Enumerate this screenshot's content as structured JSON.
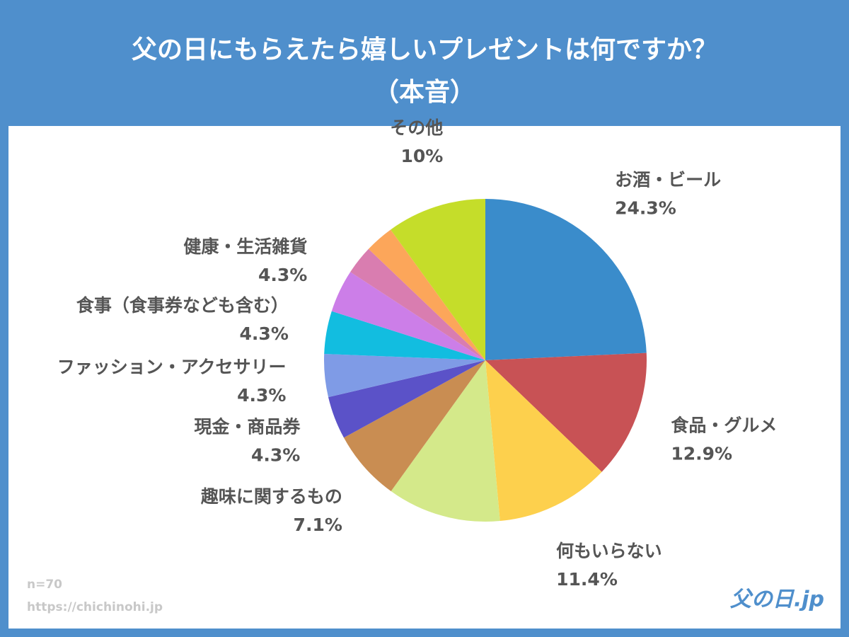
{
  "chart_data": {
    "type": "pie",
    "title": [
      "父の日にもらえたら嬉しいプレゼントは何ですか？",
      "（本音）"
    ],
    "categories": [
      "お酒・ビール",
      "食品・グルメ",
      "何もいらない",
      null,
      "趣味に関するもの",
      "現金・商品券",
      "ファッション・アクセサリー",
      "食事（食事券なども含む）",
      "健康・生活雑貨",
      null,
      null,
      "その他"
    ],
    "values": [
      24.3,
      12.9,
      11.4,
      11.4,
      7.1,
      4.3,
      4.3,
      4.3,
      4.3,
      2.9,
      2.9,
      10
    ],
    "value_labels": [
      "24.3%",
      "12.9%",
      "11.4%",
      null,
      "7.1%",
      "4.3%",
      "4.3%",
      "4.3%",
      "4.3%",
      null,
      null,
      "10%"
    ],
    "colors": [
      "#3a8ccb",
      "#c85255",
      "#fdd04d",
      "#d4e98a",
      "#c98d52",
      "#5b52c8",
      "#7f9be6",
      "#12bde0",
      "#cc7ee8",
      "#d97db0",
      "#fca65a",
      "#c5dd2a"
    ],
    "note": "n=70",
    "source": "https://chichinohi.jp",
    "logo": "父の日.jp"
  }
}
